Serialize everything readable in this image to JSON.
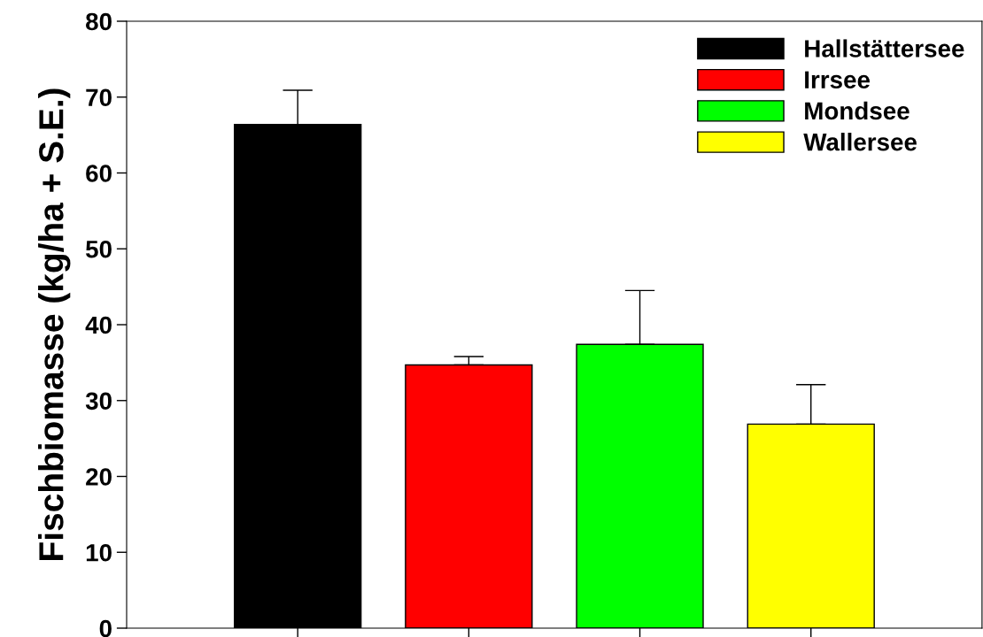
{
  "chart_data": {
    "type": "bar",
    "ylabel": "Fischbiomasse (kg/ha + S.E.)",
    "categories": [
      null,
      null,
      null,
      null
    ],
    "series": [
      {
        "name": "Hallstättersee",
        "color": "#000000",
        "values": [
          66.4,
          null,
          null,
          null
        ],
        "errors": [
          [
            66.4,
            70.9
          ],
          null,
          null,
          null
        ]
      },
      {
        "name": "Irrsee",
        "color": "#ff0000",
        "values": [
          null,
          34.7,
          null,
          null
        ],
        "errors": [
          null,
          [
            34.7,
            35.8
          ],
          null,
          null
        ]
      },
      {
        "name": "Mondsee",
        "color": "#00ff00",
        "values": [
          null,
          null,
          37.4,
          null
        ],
        "errors": [
          null,
          null,
          [
            37.4,
            44.5
          ],
          null
        ]
      },
      {
        "name": "Wallersee",
        "color": "#ffff00",
        "values": [
          null,
          null,
          null,
          26.9
        ],
        "errors": [
          null,
          null,
          null,
          [
            26.9,
            32.1
          ]
        ]
      }
    ],
    "ylim": [
      0,
      80
    ],
    "yticks": [
      0,
      10,
      20,
      30,
      40,
      50,
      60,
      70,
      80
    ],
    "grid": false,
    "legend": "top right",
    "tick_labels": "y"
  }
}
